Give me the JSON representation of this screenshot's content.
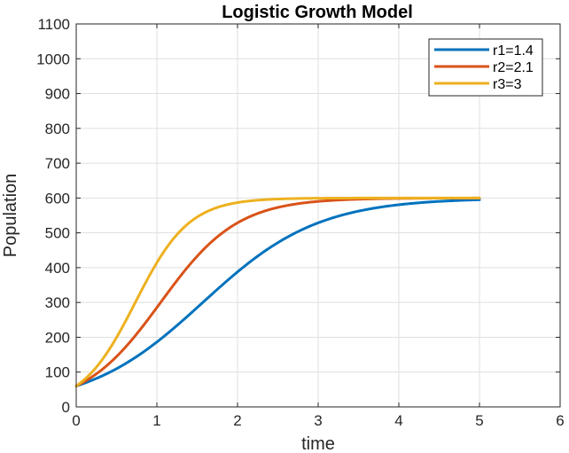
{
  "chart_data": {
    "type": "line",
    "title": "Logistic Growth Model",
    "xlabel": "time",
    "ylabel": "Population",
    "xlim": [
      0,
      6
    ],
    "ylim": [
      0,
      1100
    ],
    "xticks": [
      0,
      1,
      2,
      3,
      4,
      5,
      6
    ],
    "yticks": [
      0,
      100,
      200,
      300,
      400,
      500,
      600,
      700,
      800,
      900,
      1000,
      1100
    ],
    "grid": true,
    "legend_position": "top-right",
    "logistic": {
      "P0": 60,
      "K": 600,
      "t_max": 5
    },
    "series": [
      {
        "name": "r1=1.4",
        "r": 1.4,
        "color": "#0072BD"
      },
      {
        "name": "r2=2.1",
        "r": 2.1,
        "color": "#D95319"
      },
      {
        "name": "r3=3",
        "r": 3,
        "color": "#EDB120"
      }
    ]
  }
}
